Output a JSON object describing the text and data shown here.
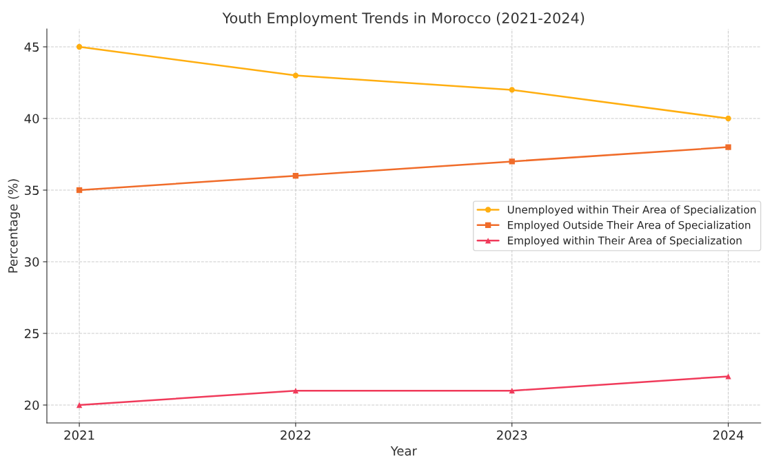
{
  "chart_data": {
    "type": "line",
    "title": "Youth Employment Trends in Morocco (2021-2024)",
    "xlabel": "Year",
    "ylabel": "Percentage (%)",
    "x": [
      2021,
      2022,
      2023,
      2024
    ],
    "series": [
      {
        "name": "Unemployed within Their Area of Specialization",
        "color": "#ffae10",
        "marker": "circle",
        "values": [
          45,
          43,
          42,
          40
        ]
      },
      {
        "name": "Employed Outside Their Area of Specialization",
        "color": "#f06c2a",
        "marker": "square",
        "values": [
          35,
          36,
          37,
          38
        ]
      },
      {
        "name": "Employed within Their Area of Specialization",
        "color": "#f03a5a",
        "marker": "triangle",
        "values": [
          20,
          21,
          21,
          22
        ]
      }
    ],
    "xlim": [
      2020.85,
      2024.15
    ],
    "xticks": [
      2021,
      2022,
      2023,
      2024
    ],
    "ylim": [
      18.75,
      46.25
    ],
    "yticks": [
      20,
      25,
      30,
      35,
      40,
      45
    ],
    "grid": true,
    "legend": "center right",
    "line_style": "solid"
  }
}
